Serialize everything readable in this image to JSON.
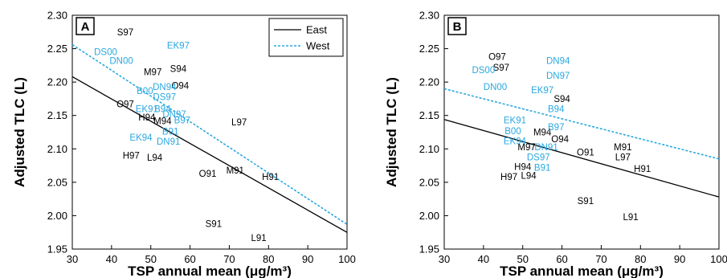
{
  "colors": {
    "east": "#000000",
    "west": "#2aa8e0"
  },
  "chart_data": [
    {
      "type": "scatter",
      "panel_label": "A",
      "xlabel": "TSP annual mean (μg/m³)",
      "ylabel": "Adjusted TLC (L)",
      "xlim": [
        30,
        100
      ],
      "ylim": [
        1.95,
        2.3
      ],
      "xticks": [
        "30",
        "40",
        "50",
        "60",
        "70",
        "80",
        "90",
        "100"
      ],
      "yticks": [
        "1.95",
        "2.00",
        "2.05",
        "2.10",
        "2.15",
        "2.20",
        "2.25",
        "2.30"
      ],
      "legend": {
        "position": "top-right",
        "entries": [
          {
            "name": "East",
            "style": "solid"
          },
          {
            "name": "West",
            "style": "dotted"
          }
        ]
      },
      "series": [
        {
          "name": "East",
          "line": {
            "x": [
              30,
              100
            ],
            "y": [
              2.208,
              1.975
            ]
          },
          "points": [
            {
              "label": "S97",
              "x": 43.5,
              "y": 2.275
            },
            {
              "label": "M97",
              "x": 50.5,
              "y": 2.215
            },
            {
              "label": "S94",
              "x": 57,
              "y": 2.22
            },
            {
              "label": "O94",
              "x": 57.5,
              "y": 2.195
            },
            {
              "label": "O97",
              "x": 43.5,
              "y": 2.167
            },
            {
              "label": "H94",
              "x": 49,
              "y": 2.147
            },
            {
              "label": "M94",
              "x": 53,
              "y": 2.142
            },
            {
              "label": "L97",
              "x": 72.5,
              "y": 2.14
            },
            {
              "label": "H97",
              "x": 45,
              "y": 2.09
            },
            {
              "label": "L94",
              "x": 51,
              "y": 2.087
            },
            {
              "label": "O91",
              "x": 64.5,
              "y": 2.063
            },
            {
              "label": "M91",
              "x": 71.5,
              "y": 2.068
            },
            {
              "label": "H91",
              "x": 80.5,
              "y": 2.058
            },
            {
              "label": "S91",
              "x": 66,
              "y": 1.988
            },
            {
              "label": "L91",
              "x": 77.5,
              "y": 1.967
            }
          ]
        },
        {
          "name": "West",
          "line": {
            "x": [
              30,
              100
            ],
            "y": [
              2.256,
              1.987
            ]
          },
          "points": [
            {
              "label": "DS00",
              "x": 38.5,
              "y": 2.245
            },
            {
              "label": "DN00",
              "x": 42.5,
              "y": 2.232
            },
            {
              "label": "EK97",
              "x": 57,
              "y": 2.255
            },
            {
              "label": "B00",
              "x": 48.5,
              "y": 2.187
            },
            {
              "label": "DN94",
              "x": 53.5,
              "y": 2.193
            },
            {
              "label": "DS97",
              "x": 53.5,
              "y": 2.178
            },
            {
              "label": "EK91",
              "x": 49,
              "y": 2.16
            },
            {
              "label": "B94",
              "x": 53,
              "y": 2.16
            },
            {
              "label": "DN97",
              "x": 56,
              "y": 2.152
            },
            {
              "label": "B97",
              "x": 58,
              "y": 2.143
            },
            {
              "label": "B91",
              "x": 55,
              "y": 2.126
            },
            {
              "label": "EK94",
              "x": 47.5,
              "y": 2.117
            },
            {
              "label": "DN91",
              "x": 54.5,
              "y": 2.111
            }
          ]
        }
      ]
    },
    {
      "type": "scatter",
      "panel_label": "B",
      "xlabel": "TSP annual mean (μg/m³)",
      "ylabel": "Adjusted TLC (L)",
      "xlim": [
        30,
        100
      ],
      "ylim": [
        1.95,
        2.3
      ],
      "xticks": [
        "30",
        "40",
        "50",
        "60",
        "70",
        "80",
        "90",
        "100"
      ],
      "yticks": [
        "1.95",
        "2.00",
        "2.05",
        "2.10",
        "2.15",
        "2.20",
        "2.25",
        "2.30"
      ],
      "series": [
        {
          "name": "East",
          "line": {
            "x": [
              30,
              100
            ],
            "y": [
              2.144,
              2.028
            ]
          },
          "points": [
            {
              "label": "O97",
              "x": 43.5,
              "y": 2.238
            },
            {
              "label": "S97",
              "x": 44.5,
              "y": 2.222
            },
            {
              "label": "S94",
              "x": 60,
              "y": 2.175
            },
            {
              "label": "M94",
              "x": 55,
              "y": 2.125
            },
            {
              "label": "O94",
              "x": 59.5,
              "y": 2.115
            },
            {
              "label": "M97",
              "x": 51,
              "y": 2.103
            },
            {
              "label": "O91",
              "x": 66,
              "y": 2.095
            },
            {
              "label": "M91",
              "x": 75.5,
              "y": 2.103
            },
            {
              "label": "L97",
              "x": 75.5,
              "y": 2.088
            },
            {
              "label": "H91",
              "x": 80.5,
              "y": 2.07
            },
            {
              "label": "H94",
              "x": 50,
              "y": 2.073
            },
            {
              "label": "H97",
              "x": 46.5,
              "y": 2.058
            },
            {
              "label": "L94",
              "x": 51.5,
              "y": 2.06
            },
            {
              "label": "S91",
              "x": 66,
              "y": 2.022
            },
            {
              "label": "L91",
              "x": 77.5,
              "y": 1.998
            }
          ]
        },
        {
          "name": "West",
          "line": {
            "x": [
              30,
              100
            ],
            "y": [
              2.19,
              2.085
            ]
          },
          "points": [
            {
              "label": "DN94",
              "x": 59,
              "y": 2.232
            },
            {
              "label": "DS00",
              "x": 40,
              "y": 2.218
            },
            {
              "label": "DN97",
              "x": 59,
              "y": 2.21
            },
            {
              "label": "DN00",
              "x": 43,
              "y": 2.193
            },
            {
              "label": "EK97",
              "x": 55,
              "y": 2.188
            },
            {
              "label": "B94",
              "x": 58.5,
              "y": 2.16
            },
            {
              "label": "EK91",
              "x": 48,
              "y": 2.143
            },
            {
              "label": "B97",
              "x": 58.5,
              "y": 2.133
            },
            {
              "label": "B00",
              "x": 47.5,
              "y": 2.127
            },
            {
              "label": "EK94",
              "x": 48,
              "y": 2.112
            },
            {
              "label": "DN91",
              "x": 56,
              "y": 2.103
            },
            {
              "label": "DS97",
              "x": 54,
              "y": 2.088
            },
            {
              "label": "B91",
              "x": 55,
              "y": 2.072
            }
          ]
        }
      ]
    }
  ]
}
